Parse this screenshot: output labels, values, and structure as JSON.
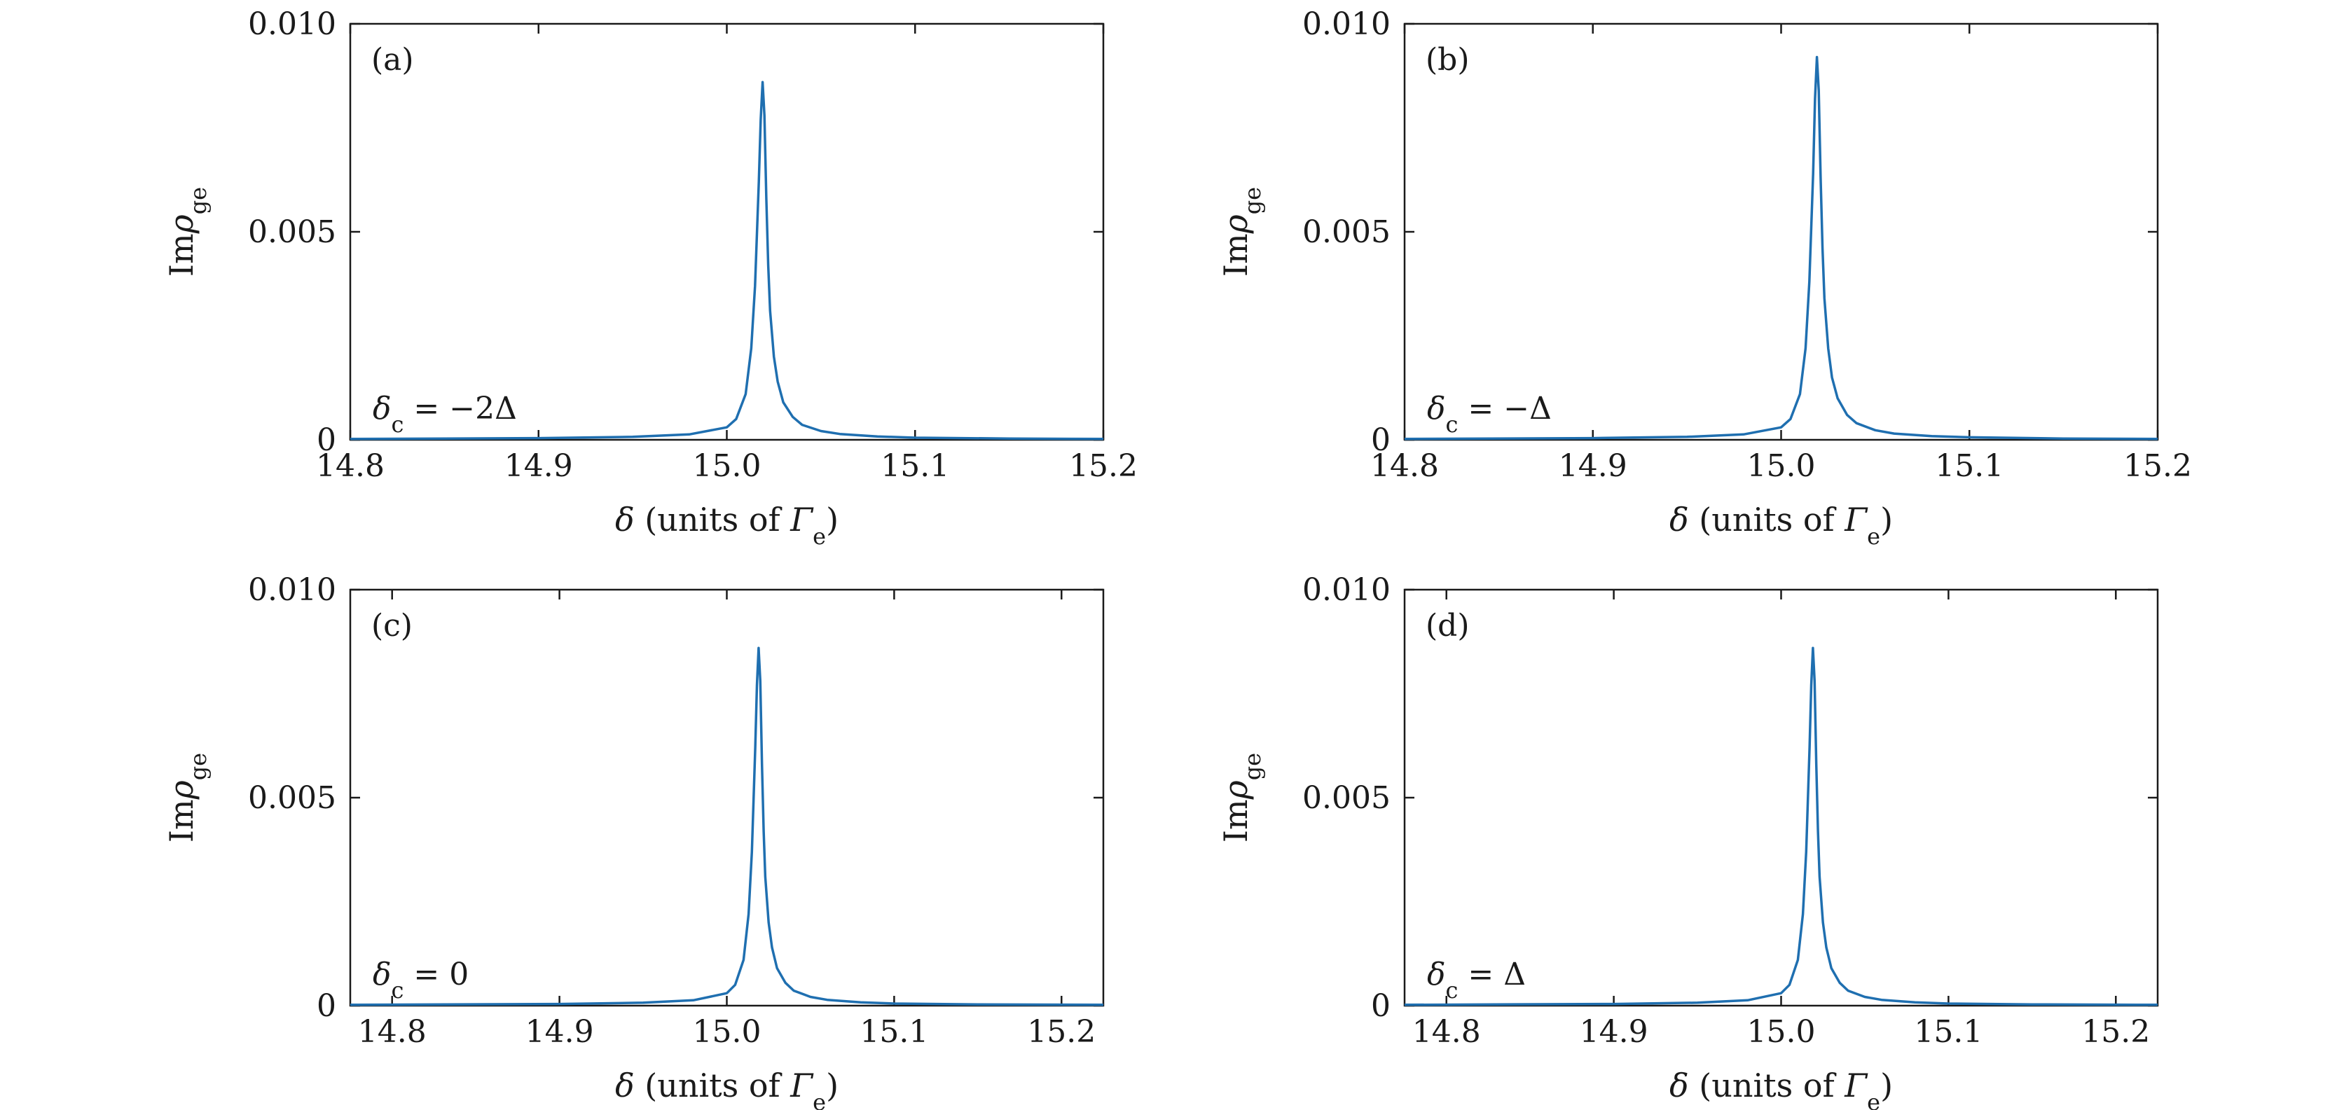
{
  "colors": {
    "line": "#1f6fb0",
    "axes": "#1a1a1a",
    "background": "#ffffff"
  },
  "chart_data": [
    {
      "type": "line",
      "panel_label": "(a)",
      "annotation": "δc = −2Δ",
      "xlabel": "δ (units of Γe)",
      "ylabel": "Imρge",
      "xlim": [
        14.8,
        15.2
      ],
      "ylim": [
        0,
        0.01
      ],
      "xticks": [
        14.8,
        14.9,
        15.0,
        15.1,
        15.2
      ],
      "xtick_labels": [
        "14.8",
        "14.9",
        "15.0",
        "15.1",
        "15.2"
      ],
      "yticks": [
        0,
        0.005,
        0.01
      ],
      "ytick_labels": [
        "0",
        "0.005",
        "0.010"
      ],
      "series": [
        {
          "x": [
            14.8,
            14.9,
            14.95,
            14.98,
            15.0,
            15.005,
            15.01,
            15.013,
            15.015,
            15.017,
            15.018,
            15.019,
            15.02,
            15.021,
            15.022,
            15.023,
            15.025,
            15.027,
            15.03,
            15.035,
            15.04,
            15.05,
            15.06,
            15.08,
            15.1,
            15.15,
            15.2
          ],
          "y": [
            2e-05,
            4e-05,
            7e-05,
            0.00013,
            0.0003,
            0.0005,
            0.0011,
            0.0022,
            0.0037,
            0.0062,
            0.0077,
            0.0086,
            0.0078,
            0.0058,
            0.0042,
            0.0031,
            0.002,
            0.0014,
            0.0009,
            0.00055,
            0.00036,
            0.00021,
            0.00014,
            8e-05,
            5e-05,
            3e-05,
            2e-05
          ]
        }
      ]
    },
    {
      "type": "line",
      "panel_label": "(b)",
      "annotation": "δc = −Δ",
      "xlabel": "δ (units of Γe)",
      "ylabel": "Imρge",
      "xlim": [
        14.8,
        15.2
      ],
      "ylim": [
        0,
        0.01
      ],
      "xticks": [
        14.8,
        14.9,
        15.0,
        15.1,
        15.2
      ],
      "xtick_labels": [
        "14.8",
        "14.9",
        "15.0",
        "15.1",
        "15.2"
      ],
      "yticks": [
        0,
        0.005,
        0.01
      ],
      "ytick_labels": [
        "0",
        "0.005",
        "0.010"
      ],
      "series": [
        {
          "x": [
            14.8,
            14.9,
            14.95,
            14.98,
            15.0,
            15.005,
            15.01,
            15.013,
            15.015,
            15.017,
            15.018,
            15.019,
            15.02,
            15.021,
            15.022,
            15.023,
            15.025,
            15.027,
            15.03,
            15.035,
            15.04,
            15.05,
            15.06,
            15.08,
            15.1,
            15.15,
            15.2
          ],
          "y": [
            2e-05,
            4e-05,
            7e-05,
            0.00013,
            0.0003,
            0.0005,
            0.0011,
            0.0022,
            0.0038,
            0.0064,
            0.0082,
            0.0092,
            0.0084,
            0.0063,
            0.0046,
            0.0034,
            0.0022,
            0.0015,
            0.001,
            0.0006,
            0.0004,
            0.00023,
            0.00015,
            9e-05,
            6e-05,
            3e-05,
            2e-05
          ]
        }
      ]
    },
    {
      "type": "line",
      "panel_label": "(c)",
      "annotation": "δc = 0",
      "xlabel": "δ (units of Γe)",
      "ylabel": "Imρge",
      "xlim": [
        14.775,
        15.225
      ],
      "ylim": [
        0,
        0.01
      ],
      "xticks": [
        14.8,
        14.9,
        15.0,
        15.1,
        15.2
      ],
      "xtick_labels": [
        "14.8",
        "14.9",
        "15.0",
        "15.1",
        "15.2"
      ],
      "yticks": [
        0,
        0.005,
        0.01
      ],
      "ytick_labels": [
        "0",
        "0.005",
        "0.010"
      ],
      "series": [
        {
          "x": [
            14.775,
            14.9,
            14.95,
            14.98,
            15.0,
            15.005,
            15.01,
            15.013,
            15.015,
            15.017,
            15.018,
            15.019,
            15.02,
            15.021,
            15.022,
            15.023,
            15.025,
            15.027,
            15.03,
            15.035,
            15.04,
            15.05,
            15.06,
            15.08,
            15.1,
            15.15,
            15.225
          ],
          "y": [
            2e-05,
            4e-05,
            7e-05,
            0.00013,
            0.0003,
            0.0005,
            0.0011,
            0.0022,
            0.0037,
            0.0062,
            0.0077,
            0.0086,
            0.0078,
            0.0058,
            0.0042,
            0.0031,
            0.002,
            0.0014,
            0.0009,
            0.00055,
            0.00036,
            0.00021,
            0.00014,
            8e-05,
            5e-05,
            3e-05,
            2e-05
          ]
        }
      ]
    },
    {
      "type": "line",
      "panel_label": "(d)",
      "annotation": "δc = Δ",
      "xlabel": "δ (units of Γe)",
      "ylabel": "Imρge",
      "xlim": [
        14.775,
        15.225
      ],
      "ylim": [
        0,
        0.01
      ],
      "xticks": [
        14.8,
        14.9,
        15.0,
        15.1,
        15.2
      ],
      "xtick_labels": [
        "14.8",
        "14.9",
        "15.0",
        "15.1",
        "15.2"
      ],
      "yticks": [
        0,
        0.005,
        0.01
      ],
      "ytick_labels": [
        "0",
        "0.005",
        "0.010"
      ],
      "series": [
        {
          "x": [
            14.775,
            14.9,
            14.95,
            14.98,
            15.0,
            15.005,
            15.01,
            15.013,
            15.015,
            15.017,
            15.018,
            15.019,
            15.02,
            15.021,
            15.022,
            15.023,
            15.025,
            15.027,
            15.03,
            15.035,
            15.04,
            15.05,
            15.06,
            15.08,
            15.1,
            15.15,
            15.225
          ],
          "y": [
            2e-05,
            4e-05,
            7e-05,
            0.00013,
            0.0003,
            0.0005,
            0.0011,
            0.0022,
            0.0037,
            0.0062,
            0.0077,
            0.0086,
            0.0078,
            0.0058,
            0.0042,
            0.0031,
            0.002,
            0.0014,
            0.0009,
            0.00055,
            0.00036,
            0.00021,
            0.00014,
            8e-05,
            5e-05,
            3e-05,
            2e-05
          ]
        }
      ]
    }
  ]
}
